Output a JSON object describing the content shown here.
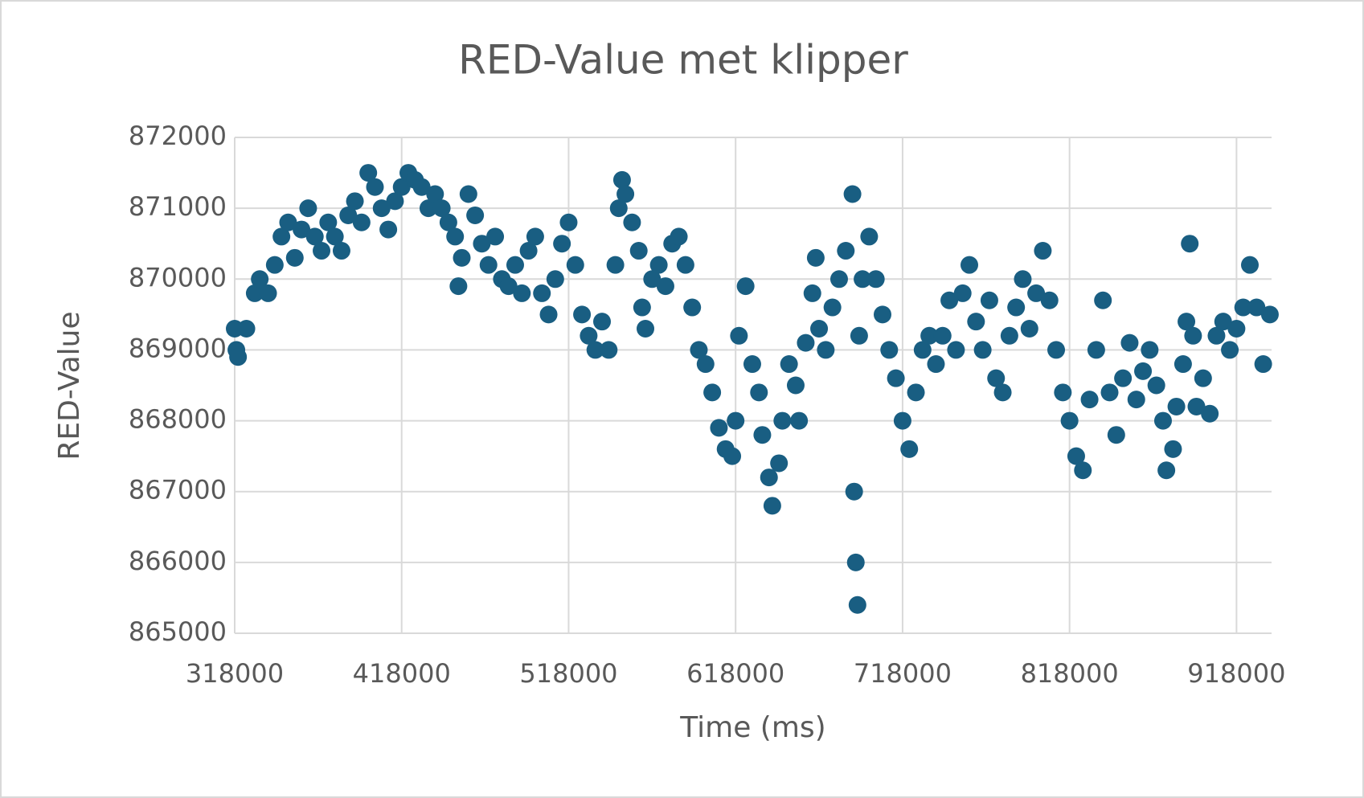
{
  "chart_data": {
    "type": "scatter",
    "title": "RED-Value met klipper",
    "x_label": "Time (ms)",
    "y_label": "RED-Value",
    "color": "#195e82",
    "grid": true,
    "xlim": [
      318000,
      939000
    ],
    "xticks": [
      318000,
      418000,
      518000,
      618000,
      718000,
      818000,
      918000
    ],
    "ylim": [
      865000,
      872000
    ],
    "yticks": [
      865000,
      866000,
      867000,
      868000,
      869000,
      870000,
      871000,
      872000
    ],
    "x": [
      318000,
      319000,
      320000,
      325000,
      330000,
      333000,
      338000,
      342000,
      346000,
      350000,
      354000,
      358000,
      362000,
      366000,
      370000,
      374000,
      378000,
      382000,
      386000,
      390000,
      394000,
      398000,
      402000,
      406000,
      410000,
      414000,
      418000,
      422000,
      426000,
      430000,
      434000,
      438000,
      442000,
      446000,
      450000,
      452000,
      454000,
      458000,
      462000,
      466000,
      470000,
      474000,
      478000,
      482000,
      486000,
      490000,
      494000,
      498000,
      502000,
      506000,
      510000,
      514000,
      518000,
      522000,
      526000,
      530000,
      534000,
      538000,
      542000,
      546000,
      548000,
      550000,
      552000,
      556000,
      560000,
      562000,
      564000,
      568000,
      572000,
      576000,
      580000,
      584000,
      588000,
      592000,
      596000,
      600000,
      604000,
      608000,
      612000,
      616000,
      618000,
      620000,
      624000,
      628000,
      632000,
      634000,
      638000,
      640000,
      644000,
      646000,
      650000,
      654000,
      656000,
      660000,
      664000,
      666000,
      668000,
      672000,
      676000,
      680000,
      684000,
      688000,
      689000,
      690000,
      691000,
      692000,
      694000,
      698000,
      702000,
      706000,
      710000,
      714000,
      718000,
      722000,
      726000,
      730000,
      734000,
      738000,
      742000,
      746000,
      750000,
      754000,
      758000,
      762000,
      766000,
      770000,
      774000,
      778000,
      782000,
      786000,
      790000,
      794000,
      798000,
      802000,
      806000,
      810000,
      814000,
      818000,
      822000,
      826000,
      830000,
      834000,
      838000,
      842000,
      846000,
      850000,
      854000,
      858000,
      862000,
      866000,
      870000,
      874000,
      876000,
      880000,
      882000,
      886000,
      888000,
      890000,
      892000,
      894000,
      898000,
      902000,
      906000,
      910000,
      914000,
      918000,
      922000,
      926000,
      930000,
      934000,
      938000
    ],
    "values": [
      869300,
      869000,
      868900,
      869300,
      869800,
      870000,
      869800,
      870200,
      870600,
      870800,
      870300,
      870700,
      871000,
      870600,
      870400,
      870800,
      870600,
      870400,
      870900,
      871100,
      870800,
      871500,
      871300,
      871000,
      870700,
      871100,
      871300,
      871500,
      871400,
      871300,
      871000,
      871200,
      871000,
      870800,
      870600,
      869900,
      870300,
      871200,
      870900,
      870500,
      870200,
      870600,
      870000,
      869900,
      870200,
      869800,
      870400,
      870600,
      869800,
      869500,
      870000,
      870500,
      870800,
      870200,
      869500,
      869200,
      869000,
      869400,
      869000,
      870200,
      871000,
      871400,
      871200,
      870800,
      870400,
      869600,
      869300,
      870000,
      870200,
      869900,
      870500,
      870600,
      870200,
      869600,
      869000,
      868800,
      868400,
      867900,
      867600,
      867500,
      868000,
      869200,
      869900,
      868800,
      868400,
      867800,
      867200,
      866800,
      867400,
      868000,
      868800,
      868500,
      868000,
      869100,
      869800,
      870300,
      869300,
      869000,
      869600,
      870000,
      870400,
      871200,
      867000,
      866000,
      865400,
      869200,
      870000,
      870600,
      870000,
      869500,
      869000,
      868600,
      868000,
      867600,
      868400,
      869000,
      869200,
      868800,
      869200,
      869700,
      869000,
      869800,
      870200,
      869400,
      869000,
      869700,
      868600,
      868400,
      869200,
      869600,
      870000,
      869300,
      869800,
      870400,
      869700,
      869000,
      868400,
      868000,
      867500,
      867300,
      868300,
      869000,
      869700,
      868400,
      867800,
      868600,
      869100,
      868300,
      868700,
      869000,
      868500,
      868000,
      867300,
      867600,
      868200,
      868800,
      869400,
      870500,
      869200,
      868200,
      868600,
      868100,
      869200,
      869400,
      869000,
      869300,
      869600,
      870200,
      869600,
      868800,
      869500
    ]
  }
}
